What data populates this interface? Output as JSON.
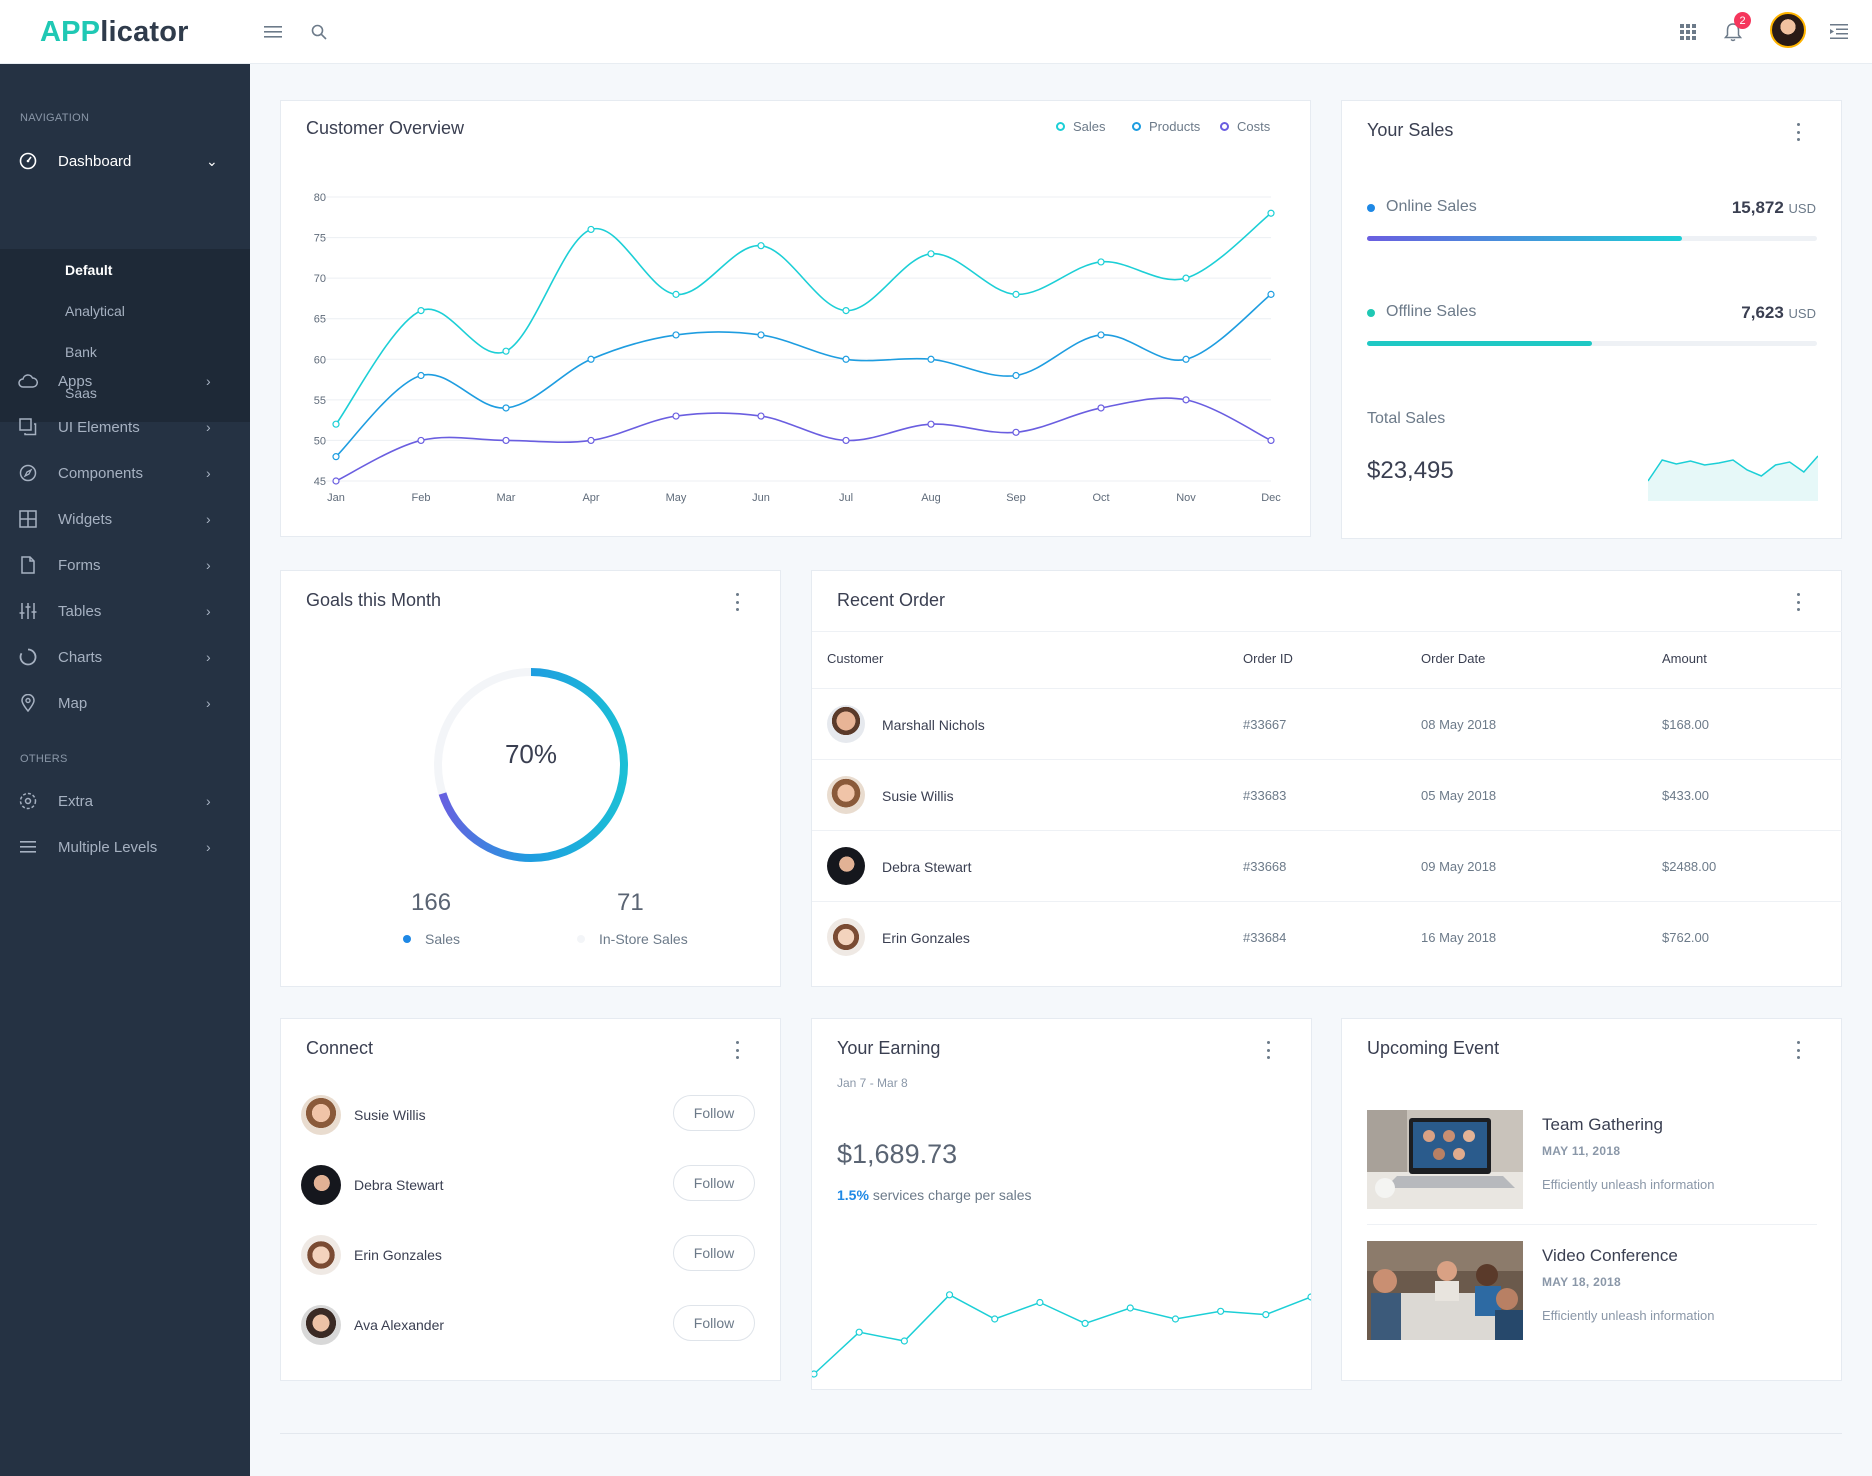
{
  "app": {
    "logo_part1": "APP",
    "logo_part2": "licator",
    "notification_count": "2"
  },
  "sidebar": {
    "navigation_heading": "NAVIGATION",
    "others_heading": "OTHERS",
    "dashboard": {
      "label": "Dashboard",
      "children": [
        "Default",
        "Analytical",
        "Bank",
        "Saas"
      ]
    },
    "items": [
      {
        "label": "Apps",
        "icon": "cloud-icon"
      },
      {
        "label": "UI Elements",
        "icon": "copy-icon"
      },
      {
        "label": "Components",
        "icon": "compass-icon"
      },
      {
        "label": "Widgets",
        "icon": "grid-icon"
      },
      {
        "label": "Forms",
        "icon": "file-icon"
      },
      {
        "label": "Tables",
        "icon": "sliders-icon"
      },
      {
        "label": "Charts",
        "icon": "pie-icon"
      },
      {
        "label": "Map",
        "icon": "map-pin-icon"
      }
    ],
    "others": [
      {
        "label": "Extra",
        "icon": "settings-icon"
      },
      {
        "label": "Multiple Levels",
        "icon": "menu-icon"
      }
    ]
  },
  "customer_overview": {
    "title": "Customer Overview",
    "legend": [
      "Sales",
      "Products",
      "Costs"
    ]
  },
  "chart_data": {
    "type": "line",
    "title": "Customer Overview",
    "categories": [
      "Jan",
      "Feb",
      "Mar",
      "Apr",
      "May",
      "Jun",
      "Jul",
      "Aug",
      "Sep",
      "Oct",
      "Nov",
      "Dec"
    ],
    "ylim": [
      45,
      80
    ],
    "yticks": [
      45,
      50,
      55,
      60,
      65,
      70,
      75,
      80
    ],
    "grid": true,
    "legend_position": "top-right",
    "series": [
      {
        "name": "Sales",
        "color": "#1ccfd6",
        "values": [
          52,
          66,
          61,
          76,
          68,
          74,
          66,
          73,
          68,
          72,
          70,
          78
        ]
      },
      {
        "name": "Products",
        "color": "#1e9de0",
        "values": [
          48,
          58,
          54,
          60,
          63,
          63,
          60,
          60,
          58,
          63,
          60,
          68
        ]
      },
      {
        "name": "Costs",
        "color": "#6a5ee0",
        "values": [
          45,
          50,
          50,
          50,
          53,
          53,
          50,
          52,
          51,
          54,
          55,
          50
        ]
      }
    ]
  },
  "your_sales": {
    "title": "Your Sales",
    "online": {
      "label": "Online Sales",
      "value": "15,872",
      "unit": "USD",
      "progress": 0.7
    },
    "offline": {
      "label": "Offline Sales",
      "value": "7,623",
      "unit": "USD",
      "progress": 0.5
    },
    "total_label": "Total Sales",
    "total_value": "$23,495",
    "sparkline": [
      40,
      82,
      74,
      80,
      72,
      76,
      82,
      62,
      50,
      72,
      78,
      58,
      90
    ]
  },
  "goals": {
    "title": "Goals this Month",
    "percent_label": "70%",
    "percent": 0.7,
    "left_value": "166",
    "left_label": "Sales",
    "right_value": "71",
    "right_label": "In-Store Sales"
  },
  "recent_order": {
    "title": "Recent Order",
    "columns": [
      "Customer",
      "Order ID",
      "Order Date",
      "Amount"
    ],
    "rows": [
      {
        "customer": "Marshall Nichols",
        "order_id": "#33667",
        "date": "08 May 2018",
        "amount": "$168.00"
      },
      {
        "customer": "Susie Willis",
        "order_id": "#33683",
        "date": "05 May 2018",
        "amount": "$433.00"
      },
      {
        "customer": "Debra Stewart",
        "order_id": "#33668",
        "date": "09 May 2018",
        "amount": "$2488.00"
      },
      {
        "customer": "Erin Gonzales",
        "order_id": "#33684",
        "date": "16 May 2018",
        "amount": "$762.00"
      }
    ]
  },
  "connect": {
    "title": "Connect",
    "button_label": "Follow",
    "people": [
      "Susie Willis",
      "Debra Stewart",
      "Erin Gonzales",
      "Ava Alexander"
    ]
  },
  "earning": {
    "title": "Your Earning",
    "date_range": "Jan 7 - Mar 8",
    "amount": "$1,689.73",
    "rate": "1.5%",
    "rate_text": "services charge per sales",
    "sparkline": [
      10,
      48,
      40,
      82,
      60,
      75,
      56,
      70,
      60,
      67,
      64,
      80
    ]
  },
  "events": {
    "title": "Upcoming Event",
    "items": [
      {
        "title": "Team Gathering",
        "date": "MAY 11, 2018",
        "desc": "Efficiently unleash information"
      },
      {
        "title": "Video Conference",
        "date": "MAY 18, 2018",
        "desc": "Efficiently unleash information"
      }
    ]
  },
  "colors": {
    "accent": "#1fc8b4",
    "sidebar": "#253243",
    "sales": "#1ccfd6",
    "products": "#1e9de0",
    "costs": "#6a5ee0"
  }
}
